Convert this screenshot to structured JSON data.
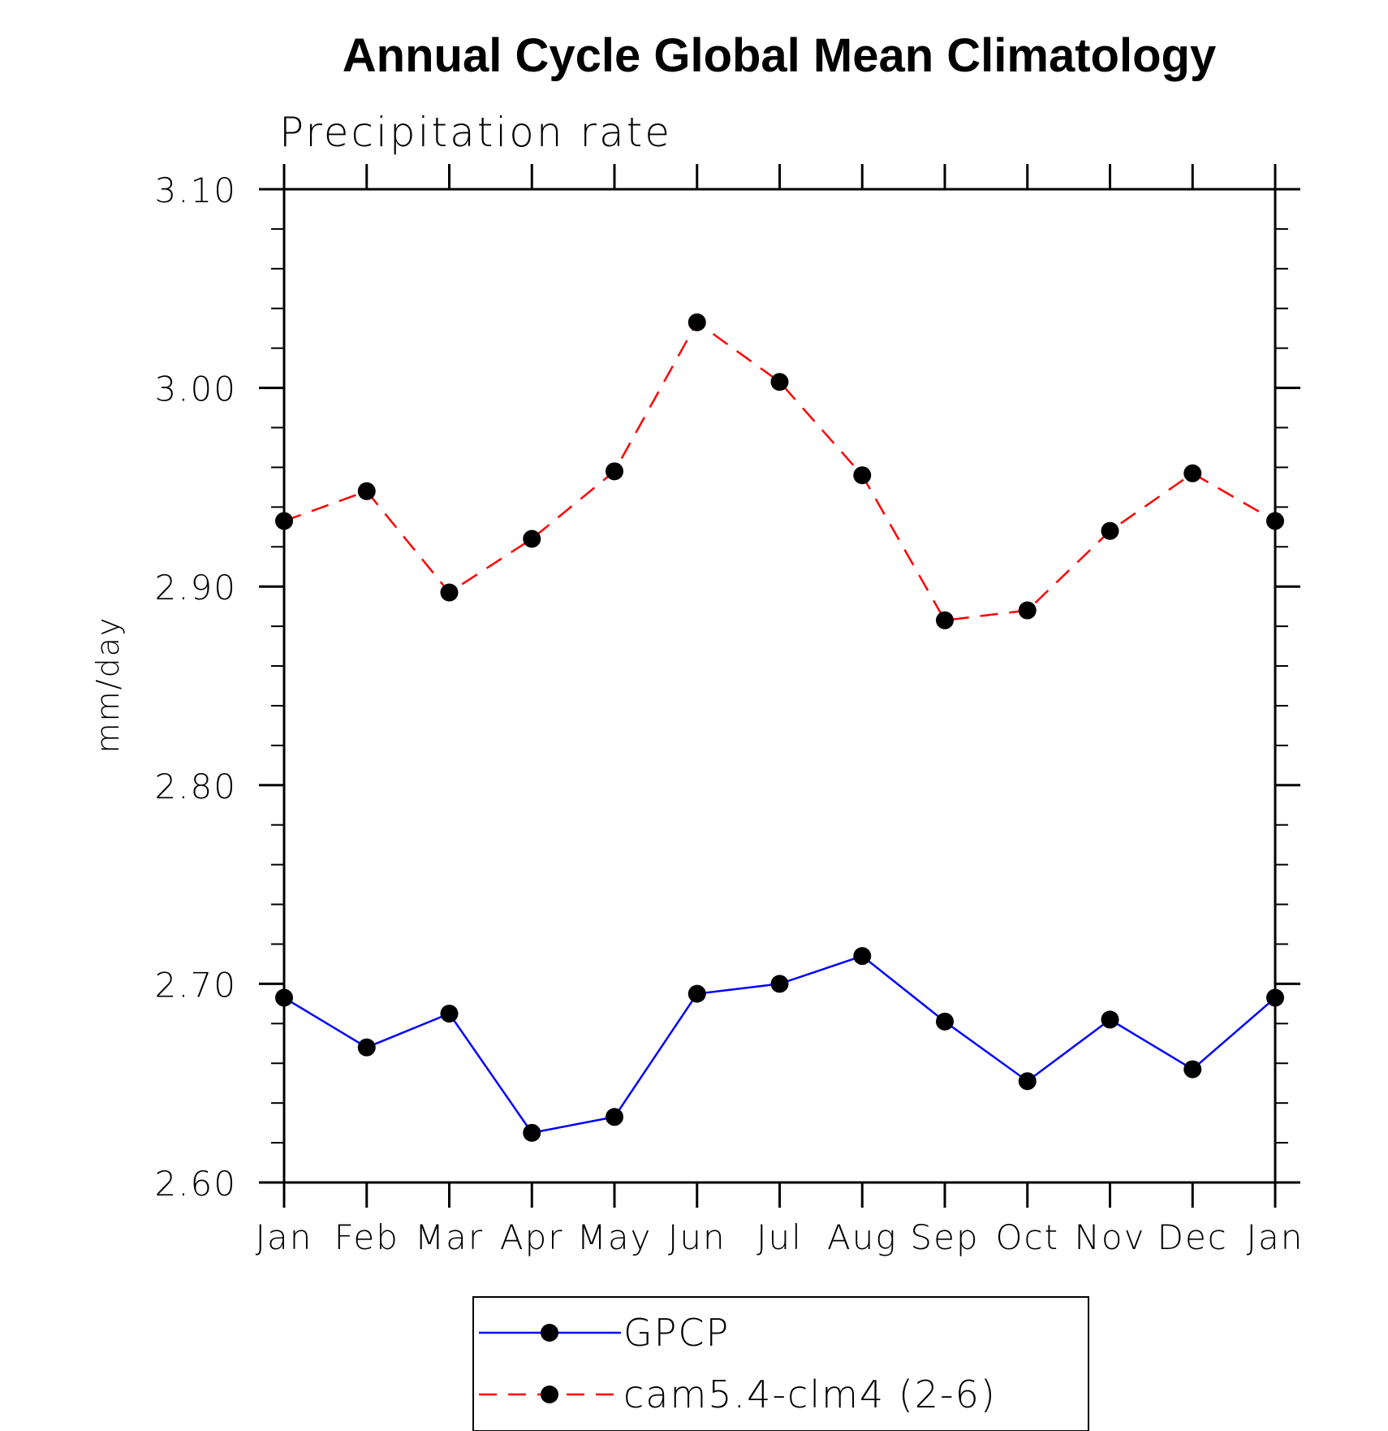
{
  "chart_data": {
    "type": "line",
    "title": "Annual Cycle Global Mean Climatology",
    "subtitle": "Precipitation rate",
    "xlabel": "",
    "ylabel": "mm/day",
    "categories": [
      "Jan",
      "Feb",
      "Mar",
      "Apr",
      "May",
      "Jun",
      "Jul",
      "Aug",
      "Sep",
      "Oct",
      "Nov",
      "Dec",
      "Jan"
    ],
    "ylim": [
      2.6,
      3.1
    ],
    "yticks": [
      "2.60",
      "2.70",
      "2.80",
      "2.90",
      "3.00",
      "3.10"
    ],
    "grid": false,
    "legend_position": "bottom",
    "series": [
      {
        "name": "GPCP",
        "color": "#0000ff",
        "dash": "solid",
        "values": [
          2.693,
          2.668,
          2.685,
          2.625,
          2.633,
          2.695,
          2.7,
          2.714,
          2.681,
          2.651,
          2.682,
          2.657,
          2.693
        ]
      },
      {
        "name": "cam5.4-clm4 (2-6)",
        "color": "#ff0000",
        "dash": "dashed",
        "values": [
          2.933,
          2.948,
          2.897,
          2.924,
          2.958,
          3.033,
          3.003,
          2.956,
          2.883,
          2.888,
          2.928,
          2.957,
          2.933
        ]
      }
    ]
  }
}
